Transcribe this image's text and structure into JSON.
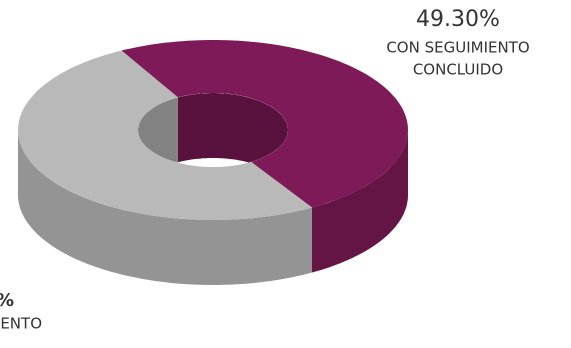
{
  "chart_data": {
    "type": "donut3d",
    "categories": [
      [
        "CON SEGUIMIENTO",
        "CONCLUIDO"
      ],
      [
        "ENTO"
      ]
    ],
    "values": [
      49.3,
      50.7
    ],
    "value_labels": [
      "49.30%",
      "%"
    ],
    "colors": [
      "#7d1a57",
      "#b9b9b9"
    ]
  }
}
